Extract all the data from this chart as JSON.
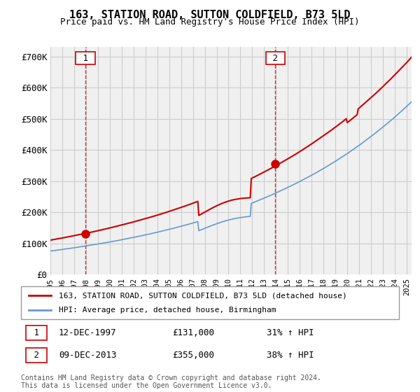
{
  "title": "163, STATION ROAD, SUTTON COLDFIELD, B73 5LD",
  "subtitle": "Price paid vs. HM Land Registry's House Price Index (HPI)",
  "ylabel_ticks": [
    "£0",
    "£100K",
    "£200K",
    "£300K",
    "£400K",
    "£500K",
    "£600K",
    "£700K"
  ],
  "ytick_vals": [
    0,
    100000,
    200000,
    300000,
    400000,
    500000,
    600000,
    700000
  ],
  "ylim": [
    0,
    730000
  ],
  "red_color": "#cc0000",
  "blue_color": "#6699cc",
  "marker_color": "#cc0000",
  "grid_color": "#cccccc",
  "bg_color": "#f0f0f0",
  "legend1": "163, STATION ROAD, SUTTON COLDFIELD, B73 5LD (detached house)",
  "legend2": "HPI: Average price, detached house, Birmingham",
  "annotation1_label": "1",
  "annotation1_date": "12-DEC-1997",
  "annotation1_price": "£131,000",
  "annotation1_hpi": "31% ↑ HPI",
  "annotation2_label": "2",
  "annotation2_date": "09-DEC-2013",
  "annotation2_price": "£355,000",
  "annotation2_hpi": "38% ↑ HPI",
  "footer": "Contains HM Land Registry data © Crown copyright and database right 2024.\nThis data is licensed under the Open Government Licence v3.0."
}
